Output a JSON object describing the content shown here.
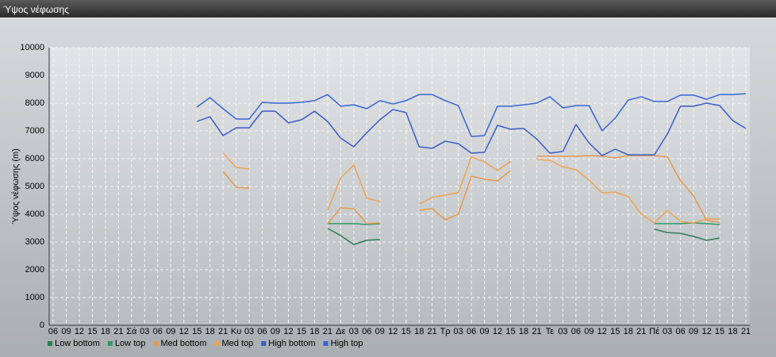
{
  "window_title": "Ύψος νέφωσης",
  "chart_data": {
    "type": "line",
    "y_label": "Ύψος νέφωσης (m)",
    "categories": [
      "06",
      "09",
      "12",
      "15",
      "18",
      "21",
      "Σά",
      "03",
      "06",
      "09",
      "12",
      "15",
      "18",
      "21",
      "Κυ",
      "03",
      "06",
      "09",
      "12",
      "15",
      "18",
      "21",
      "Δε",
      "03",
      "06",
      "09",
      "12",
      "15",
      "18",
      "21",
      "Τρ",
      "03",
      "06",
      "09",
      "12",
      "15",
      "18",
      "21",
      "Τε",
      "03",
      "06",
      "09",
      "12",
      "15",
      "18",
      "21",
      "Πέ",
      "03",
      "06",
      "09",
      "12",
      "15",
      "18",
      "21"
    ],
    "ylim": [
      0,
      10000
    ],
    "yticks": [
      0,
      1000,
      2000,
      3000,
      4000,
      5000,
      6000,
      7000,
      8000,
      9000,
      10000
    ],
    "grid": true,
    "legend": "bottom",
    "series": [
      {
        "name": "Low bottom",
        "color": "#2a7e52",
        "values": [
          null,
          null,
          null,
          null,
          null,
          null,
          null,
          null,
          null,
          null,
          null,
          null,
          null,
          null,
          null,
          null,
          null,
          null,
          null,
          null,
          null,
          3490,
          3230,
          2910,
          3060,
          3090,
          null,
          null,
          null,
          null,
          null,
          null,
          null,
          null,
          null,
          null,
          null,
          null,
          null,
          null,
          null,
          null,
          null,
          null,
          null,
          null,
          3460,
          3340,
          3310,
          3200,
          3060,
          3140,
          null,
          null
        ]
      },
      {
        "name": "Low top",
        "color": "#2e9a66",
        "values": [
          null,
          null,
          null,
          null,
          null,
          null,
          null,
          null,
          null,
          null,
          null,
          null,
          null,
          null,
          null,
          null,
          null,
          null,
          null,
          null,
          null,
          3660,
          3660,
          3660,
          3630,
          3660,
          null,
          null,
          null,
          null,
          null,
          null,
          null,
          null,
          null,
          null,
          null,
          null,
          null,
          null,
          null,
          null,
          null,
          null,
          null,
          null,
          3660,
          3660,
          3660,
          3690,
          3660,
          3630,
          null,
          null
        ]
      },
      {
        "name": "Med bottom",
        "color": "#e39a4c",
        "values": [
          null,
          null,
          null,
          null,
          null,
          null,
          null,
          null,
          null,
          null,
          null,
          null,
          null,
          5540,
          4970,
          4940,
          null,
          null,
          null,
          null,
          null,
          3660,
          4230,
          4200,
          3660,
          3690,
          null,
          null,
          4140,
          4200,
          3800,
          4000,
          5370,
          5260,
          5200,
          5570,
          null,
          6090,
          6090,
          6090,
          6090,
          6110,
          6090,
          6030,
          6110,
          6110,
          6110,
          6060,
          5200,
          4660,
          3770,
          3710,
          null,
          null
        ]
      },
      {
        "name": "Med top",
        "color": "#eea352",
        "values": [
          null,
          null,
          null,
          null,
          null,
          null,
          null,
          null,
          null,
          null,
          null,
          null,
          null,
          6200,
          5690,
          5630,
          null,
          null,
          null,
          null,
          null,
          4140,
          5310,
          5770,
          4570,
          4460,
          null,
          null,
          4370,
          4600,
          4690,
          4770,
          6060,
          5890,
          5570,
          5910,
          null,
          5970,
          5940,
          5710,
          5600,
          5230,
          4770,
          4800,
          4630,
          4000,
          3690,
          4140,
          3740,
          3690,
          3830,
          3830,
          null,
          null
        ]
      },
      {
        "name": "High bottom",
        "color": "#3a5cc8",
        "values": [
          null,
          null,
          null,
          null,
          null,
          null,
          null,
          null,
          null,
          null,
          null,
          7340,
          7510,
          6830,
          7110,
          7110,
          7710,
          7710,
          7290,
          7400,
          7710,
          7340,
          6740,
          6430,
          6940,
          7400,
          7770,
          7660,
          6430,
          6370,
          6630,
          6540,
          6200,
          6230,
          7200,
          7060,
          7090,
          6710,
          6200,
          6260,
          7230,
          6570,
          6110,
          6340,
          6140,
          6140,
          6140,
          6890,
          7890,
          7890,
          8000,
          7910,
          7370,
          7090
        ]
      },
      {
        "name": "High top",
        "color": "#3566d8",
        "values": [
          null,
          null,
          null,
          null,
          null,
          null,
          null,
          null,
          null,
          null,
          null,
          7860,
          8200,
          7800,
          7430,
          7430,
          8030,
          8000,
          8000,
          8030,
          8090,
          8310,
          7890,
          7940,
          7800,
          8090,
          7970,
          8090,
          8310,
          8310,
          8090,
          7910,
          6800,
          6830,
          7890,
          7890,
          7940,
          8000,
          8230,
          7830,
          7910,
          7910,
          7000,
          7460,
          8110,
          8230,
          8060,
          8060,
          8290,
          8290,
          8140,
          8310,
          8310,
          8340
        ]
      }
    ]
  }
}
